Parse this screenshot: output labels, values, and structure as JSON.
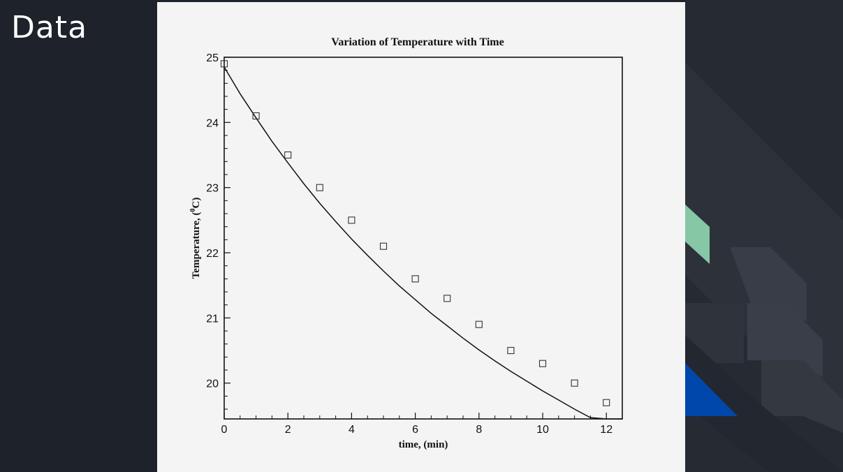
{
  "slide": {
    "title": "Data",
    "colors": {
      "background": "#1e222b",
      "title_text": "#ffffff",
      "figure_background": "#f4f4f4",
      "accent_green": "#86c7a5",
      "accent_blue": "#0047ab"
    }
  },
  "chart_data": {
    "type": "scatter",
    "title": "Variation of Temperature with Time",
    "xlabel": "time, (min)",
    "ylabel_main": "Temperature, (",
    "ylabel_sup": "0",
    "ylabel_tail": "C)",
    "xlim": [
      0,
      12.5
    ],
    "ylim": [
      19.45,
      25
    ],
    "xticks": [
      0,
      2,
      4,
      6,
      8,
      10,
      12
    ],
    "yticks": [
      20,
      21,
      22,
      23,
      24,
      25
    ],
    "grid": false,
    "series": [
      {
        "kind": "markers",
        "marker": "open-square",
        "x": [
          0,
          1,
          2,
          3,
          4,
          5,
          6,
          7,
          8,
          9,
          10,
          11,
          12
        ],
        "y": [
          24.9,
          24.1,
          23.5,
          23.0,
          22.5,
          22.1,
          21.6,
          21.3,
          20.9,
          20.5,
          20.3,
          20.0,
          19.7
        ]
      },
      {
        "kind": "fit-line",
        "x": [
          0,
          0.5,
          1,
          1.5,
          2,
          2.5,
          3,
          3.5,
          4,
          4.5,
          5,
          5.5,
          6,
          6.5,
          7,
          7.5,
          8,
          8.5,
          9,
          9.5,
          10,
          10.5,
          11,
          11.5,
          12,
          12.5
        ],
        "y": [
          24.85,
          24.44,
          24.07,
          23.71,
          23.38,
          23.06,
          22.76,
          22.48,
          22.21,
          21.96,
          21.72,
          21.49,
          21.28,
          21.07,
          20.88,
          20.69,
          20.51,
          20.34,
          20.18,
          20.03,
          19.88,
          19.74,
          19.6,
          19.47,
          19.35,
          19.23
        ]
      }
    ]
  }
}
